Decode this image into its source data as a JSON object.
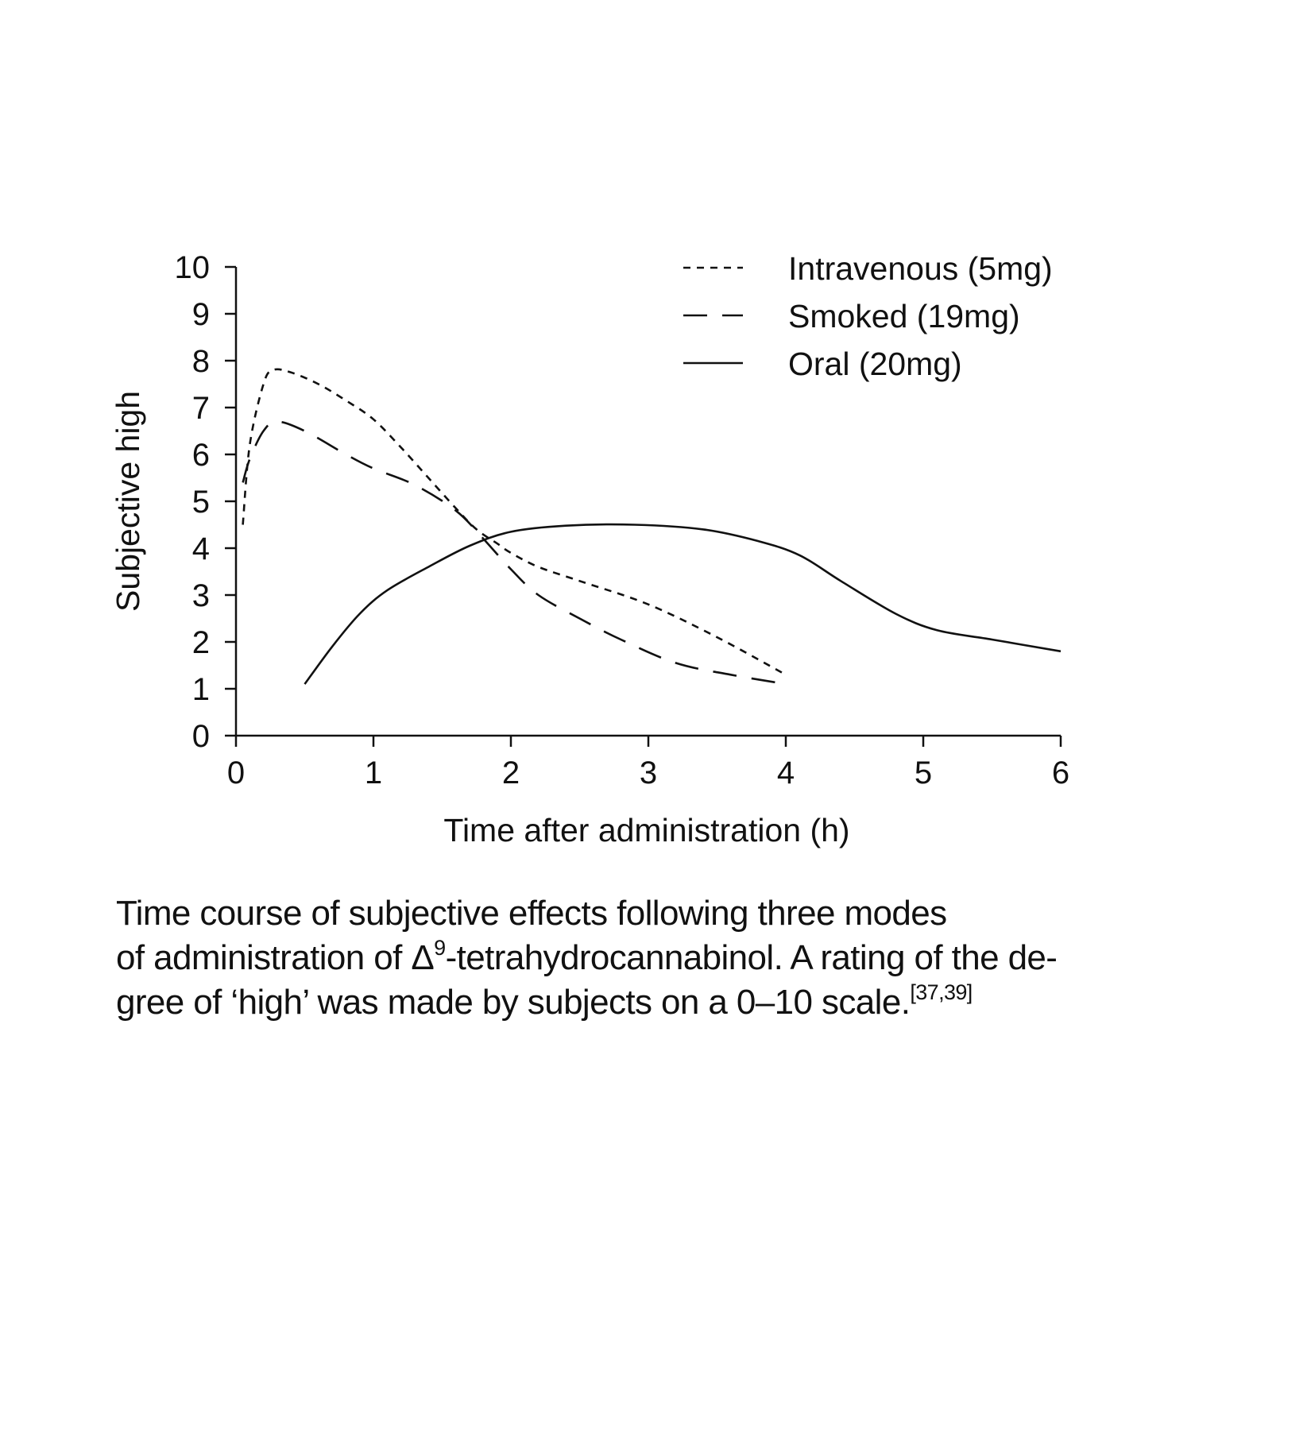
{
  "chart_data": {
    "type": "line",
    "title": "",
    "xlabel": "Time after administration (h)",
    "ylabel": "Subjective high",
    "xlim": [
      0,
      6
    ],
    "ylim": [
      0,
      10
    ],
    "x_ticks": [
      "0",
      "1",
      "2",
      "3",
      "4",
      "5",
      "6"
    ],
    "y_ticks": [
      "0",
      "1",
      "2",
      "3",
      "4",
      "5",
      "6",
      "7",
      "8",
      "9",
      "10"
    ],
    "grid": false,
    "legend_position": "top-right",
    "series": [
      {
        "name": "Intravenous (5mg)",
        "line_style": "short-dash",
        "x": [
          0.05,
          0.1,
          0.2,
          0.27,
          0.4,
          0.6,
          0.8,
          1.0,
          1.2,
          1.4,
          1.6,
          1.75,
          1.9,
          2.0,
          2.2,
          2.5,
          3.0,
          3.5,
          4.0
        ],
        "y": [
          4.5,
          6.2,
          7.5,
          7.8,
          7.75,
          7.5,
          7.15,
          6.75,
          6.15,
          5.5,
          4.85,
          4.4,
          4.1,
          3.9,
          3.6,
          3.3,
          2.8,
          2.1,
          1.3
        ]
      },
      {
        "name": "Smoked (19mg)",
        "line_style": "long-dash",
        "x": [
          0.05,
          0.1,
          0.2,
          0.3,
          0.5,
          0.8,
          1.0,
          1.3,
          1.6,
          1.8,
          2.0,
          2.2,
          2.5,
          2.8,
          3.2,
          3.6,
          4.0
        ],
        "y": [
          5.4,
          5.9,
          6.5,
          6.7,
          6.5,
          6.0,
          5.7,
          5.35,
          4.8,
          4.2,
          3.55,
          3.0,
          2.5,
          2.05,
          1.55,
          1.3,
          1.1
        ]
      },
      {
        "name": "Oral (20mg)",
        "line_style": "solid",
        "x": [
          0.5,
          0.7,
          0.9,
          1.1,
          1.4,
          1.7,
          2.0,
          2.4,
          2.9,
          3.4,
          3.8,
          4.1,
          4.4,
          4.8,
          5.1,
          5.5,
          6.0
        ],
        "y": [
          1.1,
          1.9,
          2.6,
          3.1,
          3.6,
          4.05,
          4.35,
          4.48,
          4.5,
          4.4,
          4.15,
          3.85,
          3.3,
          2.6,
          2.25,
          2.05,
          1.8
        ]
      }
    ]
  },
  "caption": {
    "line1": "Time course of subjective effects following three modes",
    "line2_part1": "of administration of Δ",
    "line2_sup": "9",
    "line2_part2": "-tetrahydrocannabinol. A rating of the de-",
    "line3": "gree of ‘high’ was made by subjects on a 0–10 scale.",
    "ref_sup": "[37,39]"
  }
}
